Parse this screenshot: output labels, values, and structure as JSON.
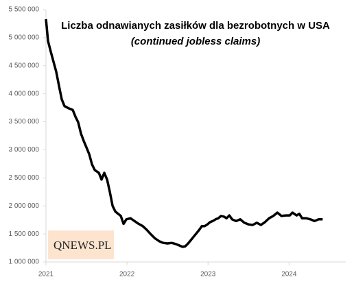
{
  "chart_data": {
    "type": "line",
    "title": "Liczba odnawianych zasiłków dla bezrobotnych w USA",
    "subtitle": "(continued jobless claims)",
    "logo": "QNEWS.PL",
    "x": [
      2021.0,
      2021.025,
      2021.059,
      2021.093,
      2021.127,
      2021.161,
      2021.195,
      2021.229,
      2021.28,
      2021.331,
      2021.364,
      2021.398,
      2021.432,
      2021.466,
      2021.5,
      2021.534,
      2021.568,
      2021.602,
      2021.653,
      2021.686,
      2021.72,
      2021.754,
      2021.788,
      2021.822,
      2021.856,
      2021.89,
      2021.924,
      2021.958,
      2021.992,
      2022.042,
      2022.093,
      2022.144,
      2022.195,
      2022.246,
      2022.297,
      2022.347,
      2022.398,
      2022.449,
      2022.5,
      2022.551,
      2022.602,
      2022.653,
      2022.686,
      2022.72,
      2022.754,
      2022.788,
      2022.822,
      2022.856,
      2022.89,
      2022.924,
      2022.958,
      2022.992,
      2023.025,
      2023.059,
      2023.093,
      2023.127,
      2023.161,
      2023.195,
      2023.229,
      2023.263,
      2023.297,
      2023.347,
      2023.398,
      2023.449,
      2023.5,
      2023.551,
      2023.602,
      2023.653,
      2023.703,
      2023.754,
      2023.805,
      2023.856,
      2023.907,
      2023.958,
      2024.008,
      2024.042,
      2024.093,
      2024.127,
      2024.161,
      2024.212,
      2024.263,
      2024.314,
      2024.364,
      2024.415
    ],
    "series": [
      {
        "name": "continued jobless claims",
        "color": "#000000",
        "values": [
          5330000,
          4940000,
          4750000,
          4570000,
          4390000,
          4140000,
          3900000,
          3780000,
          3740000,
          3710000,
          3590000,
          3490000,
          3290000,
          3160000,
          3040000,
          2920000,
          2740000,
          2640000,
          2590000,
          2470000,
          2590000,
          2470000,
          2250000,
          2000000,
          1900000,
          1860000,
          1820000,
          1680000,
          1760000,
          1780000,
          1730000,
          1680000,
          1640000,
          1570000,
          1490000,
          1420000,
          1370000,
          1340000,
          1330000,
          1340000,
          1320000,
          1290000,
          1270000,
          1280000,
          1330000,
          1390000,
          1450000,
          1510000,
          1570000,
          1640000,
          1640000,
          1670000,
          1710000,
          1730000,
          1760000,
          1780000,
          1820000,
          1810000,
          1780000,
          1830000,
          1760000,
          1730000,
          1760000,
          1700000,
          1670000,
          1660000,
          1700000,
          1660000,
          1710000,
          1780000,
          1820000,
          1880000,
          1820000,
          1830000,
          1830000,
          1880000,
          1830000,
          1860000,
          1780000,
          1780000,
          1760000,
          1730000,
          1760000,
          1760000
        ]
      }
    ],
    "xlim": [
      2021,
      2024.7
    ],
    "xticks": [
      2021,
      2022,
      2023,
      2024
    ],
    "ylim": [
      1000000,
      5500000
    ],
    "yticks": [
      {
        "value": 1000000,
        "label": "1 000 000"
      },
      {
        "value": 1500000,
        "label": "1 500 000"
      },
      {
        "value": 2000000,
        "label": "2 000 000"
      },
      {
        "value": 2500000,
        "label": "2 500 000"
      },
      {
        "value": 3000000,
        "label": "3 000 000"
      },
      {
        "value": 3500000,
        "label": "3 500 000"
      },
      {
        "value": 4000000,
        "label": "4 000 000"
      },
      {
        "value": 4500000,
        "label": "4 500 000"
      },
      {
        "value": 5000000,
        "label": "5 000 000"
      },
      {
        "value": 5500000,
        "label": "5 500 000"
      }
    ],
    "grid": false
  }
}
